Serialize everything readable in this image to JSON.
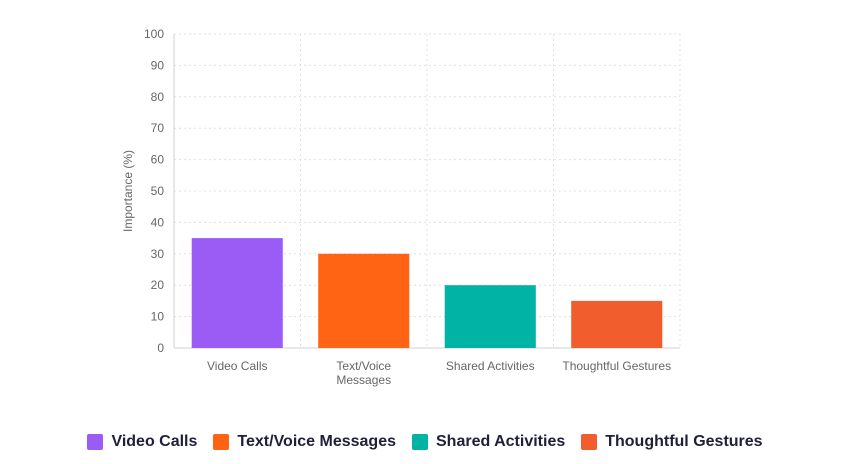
{
  "chart_data": {
    "type": "bar",
    "categories": [
      [
        "Video Calls"
      ],
      [
        "Text/Voice",
        "Messages"
      ],
      [
        "Shared Activities"
      ],
      [
        "Thoughtful Gestures"
      ]
    ],
    "values": [
      35,
      30,
      20,
      15
    ],
    "colors": [
      "#9b5cf6",
      "#ff6313",
      "#00b3a4",
      "#f25d2e"
    ],
    "ylabel": "Importance (%)",
    "xlabel": "",
    "title": "",
    "ylim": [
      0,
      100
    ],
    "yticks": [
      0,
      10,
      20,
      30,
      40,
      50,
      60,
      70,
      80,
      90,
      100
    ],
    "grid": true,
    "legend_position": "bottom"
  },
  "legend": {
    "items": [
      {
        "label": "Video Calls",
        "color": "#9b5cf6"
      },
      {
        "label": "Text/Voice Messages",
        "color": "#ff6313"
      },
      {
        "label": "Shared Activities",
        "color": "#00b3a4"
      },
      {
        "label": "Thoughtful Gestures",
        "color": "#f25d2e"
      }
    ]
  }
}
